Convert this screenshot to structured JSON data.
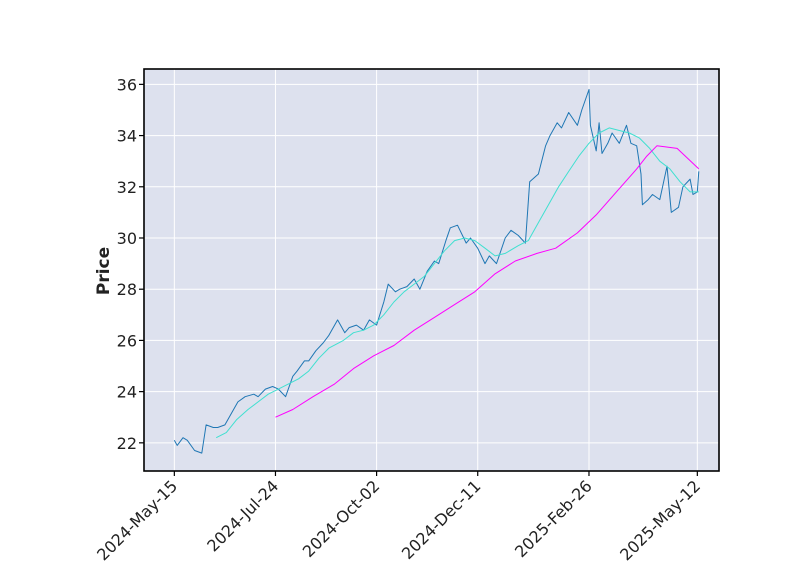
{
  "chart_data": {
    "type": "line",
    "title": "",
    "xlabel": "",
    "ylabel": "Price",
    "ylim": [
      20.9,
      36.6
    ],
    "xlim": [
      "2024-04-24",
      "2025-05-27"
    ],
    "grid": true,
    "background_color": "#dde1ee",
    "x_ticks": [
      "2024-05-15",
      "2024-07-24",
      "2024-10-02",
      "2024-12-11",
      "2025-02-26",
      "2025-05-12"
    ],
    "x_tick_labels": [
      "2024-May-15",
      "2024-Jul-24",
      "2024-Oct-02",
      "2024-Dec-11",
      "2025-Feb-26",
      "2025-May-12"
    ],
    "y_ticks": [
      22,
      24,
      26,
      28,
      30,
      32,
      34,
      36
    ],
    "y_tick_labels": [
      "22",
      "24",
      "26",
      "28",
      "30",
      "32",
      "34",
      "36"
    ],
    "series": [
      {
        "color": "#1f77b4",
        "x": [
          "2024-05-15",
          "2024-05-17",
          "2024-05-21",
          "2024-05-24",
          "2024-05-29",
          "2024-06-03",
          "2024-06-06",
          "2024-06-11",
          "2024-06-14",
          "2024-06-19",
          "2024-06-24",
          "2024-06-28",
          "2024-07-03",
          "2024-07-09",
          "2024-07-12",
          "2024-07-17",
          "2024-07-22",
          "2024-07-26",
          "2024-07-31",
          "2024-08-05",
          "2024-08-08",
          "2024-08-13",
          "2024-08-16",
          "2024-08-21",
          "2024-08-26",
          "2024-08-30",
          "2024-09-05",
          "2024-09-10",
          "2024-09-13",
          "2024-09-18",
          "2024-09-23",
          "2024-09-27",
          "2024-10-02",
          "2024-10-07",
          "2024-10-10",
          "2024-10-15",
          "2024-10-18",
          "2024-10-23",
          "2024-10-28",
          "2024-11-01",
          "2024-11-06",
          "2024-11-11",
          "2024-11-14",
          "2024-11-19",
          "2024-11-22",
          "2024-11-27",
          "2024-12-03",
          "2024-12-06",
          "2024-12-11",
          "2024-12-16",
          "2024-12-19",
          "2024-12-24",
          "2024-12-30",
          "2025-01-03",
          "2025-01-08",
          "2025-01-13",
          "2025-01-16",
          "2025-01-22",
          "2025-01-27",
          "2025-01-30",
          "2025-02-04",
          "2025-02-07",
          "2025-02-12",
          "2025-02-18",
          "2025-02-21",
          "2025-02-26",
          "2025-02-27",
          "2025-03-03",
          "2025-03-05",
          "2025-03-07",
          "2025-03-11",
          "2025-03-14",
          "2025-03-19",
          "2025-03-24",
          "2025-03-27",
          "2025-03-31",
          "2025-04-03",
          "2025-04-04",
          "2025-04-08",
          "2025-04-11",
          "2025-04-16",
          "2025-04-21",
          "2025-04-24",
          "2025-04-29",
          "2025-05-02",
          "2025-05-07",
          "2025-05-09",
          "2025-05-12",
          "2025-05-13"
        ],
        "values": [
          22.1,
          21.9,
          22.2,
          22.1,
          21.7,
          21.6,
          22.7,
          22.6,
          22.6,
          22.7,
          23.2,
          23.6,
          23.8,
          23.9,
          23.8,
          24.1,
          24.2,
          24.1,
          23.8,
          24.6,
          24.8,
          25.2,
          25.2,
          25.6,
          25.9,
          26.2,
          26.8,
          26.3,
          26.5,
          26.6,
          26.4,
          26.8,
          26.6,
          27.5,
          28.2,
          27.9,
          28.0,
          28.1,
          28.4,
          28.0,
          28.7,
          29.1,
          29.0,
          29.9,
          30.4,
          30.5,
          29.8,
          30.0,
          29.6,
          29.0,
          29.3,
          29.0,
          30.0,
          30.3,
          30.1,
          29.8,
          32.2,
          32.5,
          33.6,
          34.0,
          34.5,
          34.3,
          34.9,
          34.4,
          35.0,
          35.8,
          34.4,
          33.4,
          34.5,
          33.3,
          33.7,
          34.1,
          33.7,
          34.4,
          33.7,
          33.6,
          32.5,
          31.3,
          31.5,
          31.7,
          31.5,
          32.8,
          31.0,
          31.2,
          32.0,
          32.3,
          31.7,
          31.8,
          32.6
        ]
      },
      {
        "color": "#40e0d0",
        "x": [
          "2024-06-13",
          "2024-06-20",
          "2024-06-27",
          "2024-07-05",
          "2024-07-12",
          "2024-07-19",
          "2024-07-26",
          "2024-08-02",
          "2024-08-09",
          "2024-08-16",
          "2024-08-23",
          "2024-08-30",
          "2024-09-09",
          "2024-09-16",
          "2024-09-23",
          "2024-09-30",
          "2024-10-07",
          "2024-10-14",
          "2024-10-21",
          "2024-10-28",
          "2024-11-04",
          "2024-11-11",
          "2024-11-18",
          "2024-11-25",
          "2024-12-02",
          "2024-12-09",
          "2024-12-16",
          "2024-12-23",
          "2024-12-30",
          "2025-01-08",
          "2025-01-15",
          "2025-01-22",
          "2025-01-29",
          "2025-02-05",
          "2025-02-12",
          "2025-02-19",
          "2025-02-26",
          "2025-03-05",
          "2025-03-12",
          "2025-03-19",
          "2025-03-26",
          "2025-04-02",
          "2025-04-09",
          "2025-04-16",
          "2025-04-23",
          "2025-04-30",
          "2025-05-07",
          "2025-05-13"
        ],
        "values": [
          22.2,
          22.4,
          22.9,
          23.3,
          23.6,
          23.9,
          24.1,
          24.3,
          24.5,
          24.8,
          25.3,
          25.7,
          26.0,
          26.3,
          26.4,
          26.6,
          27.0,
          27.5,
          27.9,
          28.2,
          28.5,
          29.0,
          29.5,
          29.9,
          30.0,
          29.9,
          29.6,
          29.3,
          29.4,
          29.7,
          29.9,
          30.6,
          31.3,
          32.0,
          32.6,
          33.2,
          33.7,
          34.1,
          34.3,
          34.2,
          34.1,
          33.9,
          33.5,
          33.0,
          32.7,
          32.2,
          31.8,
          31.8
        ]
      },
      {
        "color": "#ff00ff",
        "x": [
          "2024-07-24",
          "2024-08-05",
          "2024-08-19",
          "2024-09-03",
          "2024-09-16",
          "2024-09-30",
          "2024-10-14",
          "2024-10-28",
          "2024-11-11",
          "2024-11-25",
          "2024-12-09",
          "2024-12-23",
          "2025-01-06",
          "2025-01-21",
          "2025-02-03",
          "2025-02-18",
          "2025-03-03",
          "2025-03-17",
          "2025-03-31",
          "2025-04-07",
          "2025-04-14",
          "2025-04-28",
          "2025-05-13"
        ],
        "values": [
          23.0,
          23.3,
          23.8,
          24.3,
          24.9,
          25.4,
          25.8,
          26.4,
          26.9,
          27.4,
          27.9,
          28.6,
          29.1,
          29.4,
          29.6,
          30.2,
          30.9,
          31.8,
          32.7,
          33.2,
          33.6,
          33.5,
          32.7
        ]
      }
    ]
  }
}
